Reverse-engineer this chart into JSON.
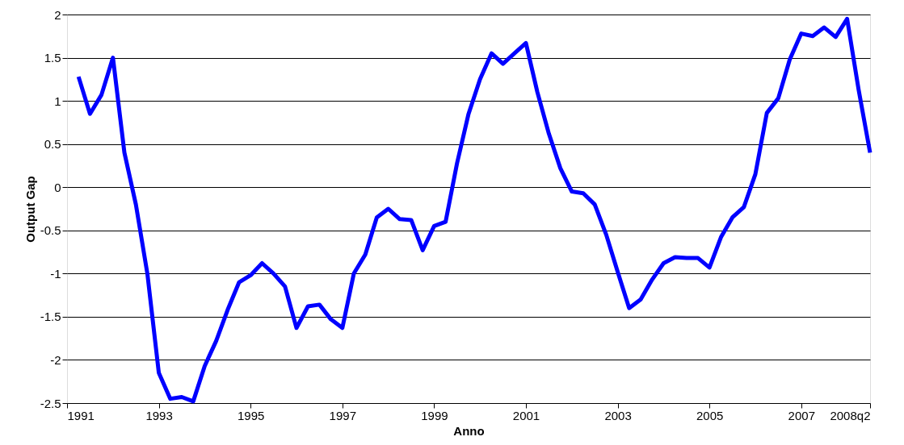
{
  "chart_data": {
    "type": "line",
    "xlabel": "Anno",
    "ylabel": "Output Gap",
    "x": [
      1991.25,
      1991.5,
      1991.75,
      1992.0,
      1992.25,
      1992.5,
      1992.75,
      1993.0,
      1993.25,
      1993.5,
      1993.75,
      1994.0,
      1994.25,
      1994.5,
      1994.75,
      1995.0,
      1995.25,
      1995.5,
      1995.75,
      1996.0,
      1996.25,
      1996.5,
      1996.75,
      1997.0,
      1997.25,
      1997.5,
      1997.75,
      1998.0,
      1998.25,
      1998.5,
      1998.75,
      1999.0,
      1999.25,
      1999.5,
      1999.75,
      2000.0,
      2000.25,
      2000.5,
      2000.75,
      2001.0,
      2001.25,
      2001.5,
      2001.75,
      2002.0,
      2002.25,
      2002.5,
      2002.75,
      2003.0,
      2003.25,
      2003.5,
      2003.75,
      2004.0,
      2004.25,
      2004.5,
      2004.75,
      2005.0,
      2005.25,
      2005.5,
      2005.75,
      2006.0,
      2006.25,
      2006.5,
      2006.75,
      2007.0,
      2007.25,
      2007.5,
      2007.75,
      2008.0,
      2008.25,
      2008.5
    ],
    "series": [
      {
        "color": "#0000ff",
        "values": [
          1.28,
          0.85,
          1.07,
          1.5,
          0.4,
          -0.2,
          -1.0,
          -2.15,
          -2.45,
          -2.43,
          -2.48,
          -2.07,
          -1.78,
          -1.42,
          -1.1,
          -1.02,
          -0.88,
          -1.0,
          -1.15,
          -1.63,
          -1.38,
          -1.36,
          -1.53,
          -1.63,
          -1.0,
          -0.78,
          -0.35,
          -0.25,
          -0.37,
          -0.38,
          -0.73,
          -0.45,
          -0.4,
          0.28,
          0.85,
          1.25,
          1.55,
          1.43,
          1.55,
          1.67,
          1.1,
          0.62,
          0.22,
          -0.05,
          -0.07,
          -0.2,
          -0.55,
          -0.98,
          -1.4,
          -1.3,
          -1.07,
          -0.88,
          -0.81,
          -0.82,
          -0.82,
          -0.93,
          -0.58,
          -0.35,
          -0.23,
          0.15,
          0.86,
          1.03,
          1.48,
          1.78,
          1.75,
          1.85,
          1.74,
          1.95,
          1.13,
          0.4
        ]
      }
    ],
    "xlim": [
      1991,
      2008.5
    ],
    "xticks": [
      1991,
      1993,
      1995,
      1997,
      1999,
      2001,
      2003,
      2005,
      2007,
      {
        "value": 2008.5,
        "label": "2008q2"
      }
    ],
    "ylim": [
      -2.5,
      2
    ],
    "yticks": [
      -2.5,
      -2,
      -1.5,
      -1,
      -0.5,
      0,
      0.5,
      1,
      1.5,
      2
    ],
    "grid": "y",
    "marker": "none",
    "line_style": "solid"
  }
}
